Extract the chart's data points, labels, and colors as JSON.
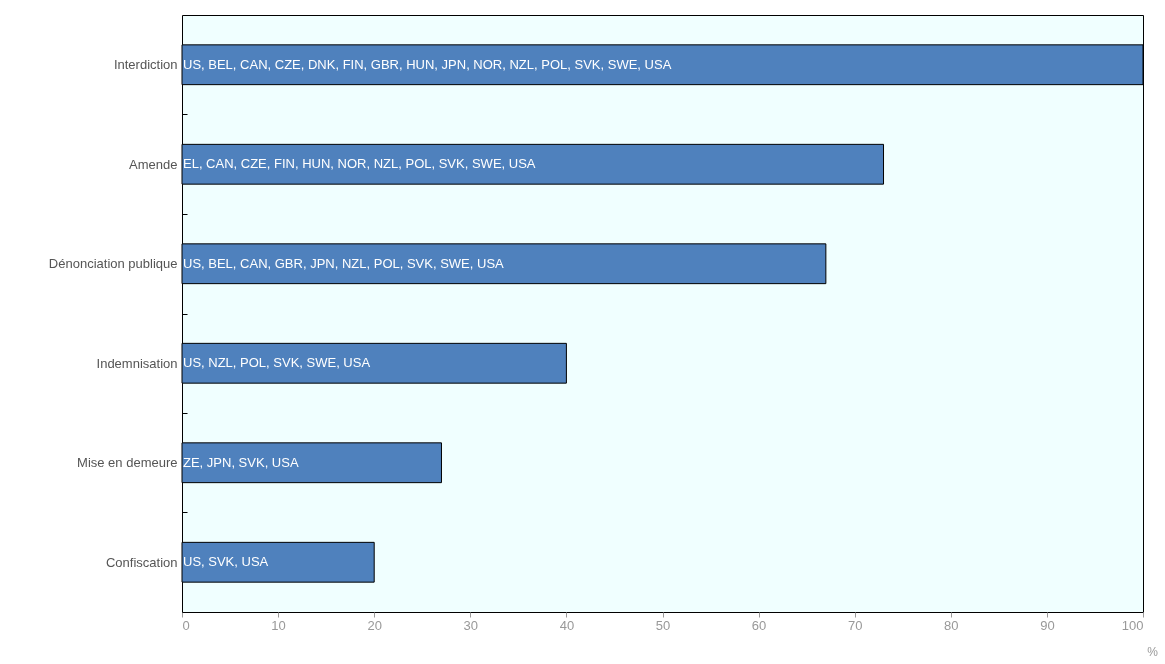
{
  "chart_data": {
    "type": "bar",
    "orientation": "horizontal",
    "xlabel": "%",
    "categories": [
      "Interdiction",
      "Amende",
      "Dénonciation publique",
      "Indemnisation",
      "Mise en demeure",
      "Confiscation"
    ],
    "values": [
      100,
      73,
      67,
      40,
      27,
      20
    ],
    "color": "#4f81bd",
    "value_labels": [
      "US, BEL, CAN, CZE, DNK, FIN, GBR, HUN, JPN, NOR, NZL, POL, SVK, SWE, USA",
      "EL, CAN, CZE, FIN, HUN, NOR, NZL, POL, SVK, SWE, USA",
      "US, BEL, CAN, GBR, JPN, NZL, POL, SVK, SWE, USA",
      "US, NZL, POL, SVK, SWE, USA",
      "ZE, JPN, SVK, USA",
      "US, SVK, USA"
    ],
    "xlim": [
      0,
      100
    ],
    "xticks": [
      0,
      10,
      20,
      30,
      40,
      50,
      60,
      70,
      80,
      90,
      100
    ],
    "grid": false
  }
}
